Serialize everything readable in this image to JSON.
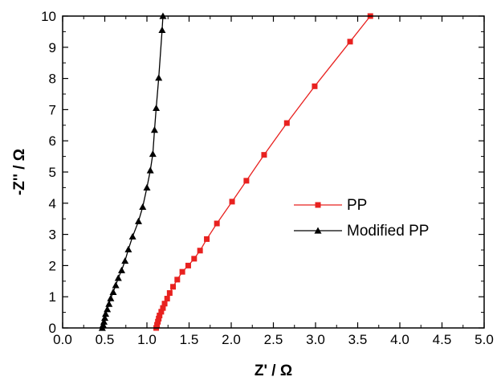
{
  "chart_data": {
    "type": "line",
    "xlabel": "Z' / Ω",
    "ylabel": "-Z'' / Ω",
    "xlim": [
      0,
      5
    ],
    "ylim": [
      0,
      10
    ],
    "x_ticks": [
      "0.0",
      "0.5",
      "1.0",
      "1.5",
      "2.0",
      "2.5",
      "3.0",
      "3.5",
      "4.0",
      "4.5",
      "5.0"
    ],
    "y_ticks": [
      "0",
      "1",
      "2",
      "3",
      "4",
      "5",
      "6",
      "7",
      "8",
      "9",
      "10"
    ],
    "legend_position": "right-middle",
    "series": [
      {
        "name": "PP",
        "color": "#e8211f",
        "marker": "square",
        "points": [
          [
            1.11,
            0.0
          ],
          [
            1.12,
            0.1
          ],
          [
            1.13,
            0.2
          ],
          [
            1.14,
            0.3
          ],
          [
            1.15,
            0.4
          ],
          [
            1.17,
            0.52
          ],
          [
            1.19,
            0.64
          ],
          [
            1.21,
            0.78
          ],
          [
            1.24,
            0.94
          ],
          [
            1.27,
            1.12
          ],
          [
            1.31,
            1.32
          ],
          [
            1.36,
            1.55
          ],
          [
            1.42,
            1.8
          ],
          [
            1.49,
            2.0
          ],
          [
            1.56,
            2.22
          ],
          [
            1.63,
            2.48
          ],
          [
            1.71,
            2.85
          ],
          [
            1.83,
            3.35
          ],
          [
            2.01,
            4.05
          ],
          [
            2.18,
            4.72
          ],
          [
            2.39,
            5.55
          ],
          [
            2.66,
            6.57
          ],
          [
            2.99,
            7.75
          ],
          [
            3.41,
            9.18
          ],
          [
            3.65,
            10.0
          ]
        ]
      },
      {
        "name": "Modified PP",
        "color": "#000000",
        "marker": "triangle",
        "points": [
          [
            0.47,
            0.0
          ],
          [
            0.48,
            0.1
          ],
          [
            0.49,
            0.2
          ],
          [
            0.5,
            0.32
          ],
          [
            0.51,
            0.45
          ],
          [
            0.53,
            0.6
          ],
          [
            0.55,
            0.77
          ],
          [
            0.57,
            0.95
          ],
          [
            0.6,
            1.15
          ],
          [
            0.63,
            1.37
          ],
          [
            0.66,
            1.6
          ],
          [
            0.7,
            1.85
          ],
          [
            0.74,
            2.15
          ],
          [
            0.78,
            2.52
          ],
          [
            0.83,
            2.93
          ],
          [
            0.9,
            3.42
          ],
          [
            0.95,
            3.88
          ],
          [
            1.0,
            4.5
          ],
          [
            1.04,
            5.05
          ],
          [
            1.07,
            5.58
          ],
          [
            1.09,
            6.35
          ],
          [
            1.11,
            7.05
          ],
          [
            1.14,
            8.02
          ],
          [
            1.18,
            9.55
          ],
          [
            1.19,
            10.0
          ]
        ]
      }
    ]
  }
}
